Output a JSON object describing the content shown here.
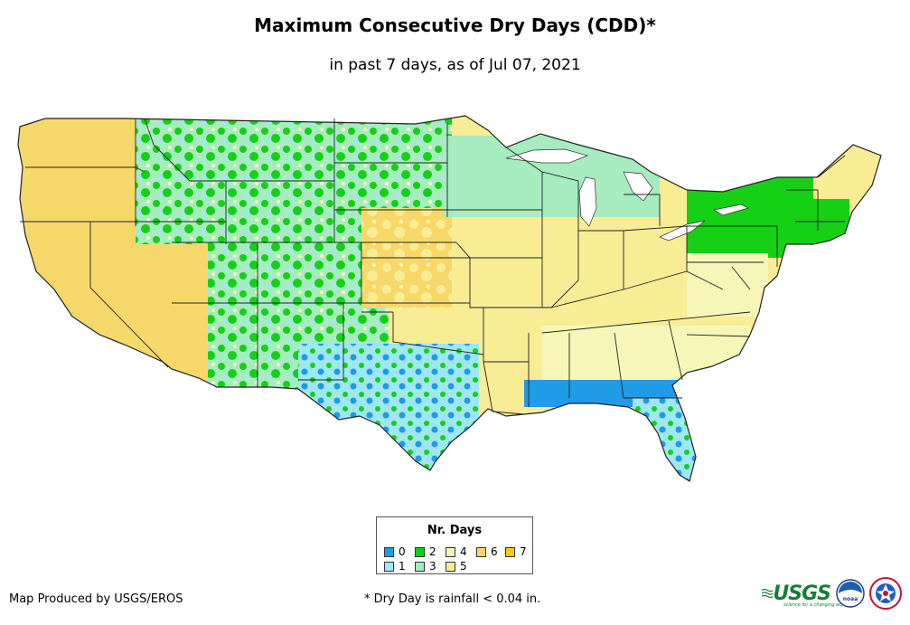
{
  "title": "Maximum Consecutive Dry Days (CDD)*",
  "subtitle": "in past 7 days, as of Jul 07, 2021",
  "legend": {
    "title": "Nr. Days",
    "items": [
      {
        "label": "0",
        "color": "#1f9be8"
      },
      {
        "label": "1",
        "color": "#9ee8f5"
      },
      {
        "label": "2",
        "color": "#15d015"
      },
      {
        "label": "3",
        "color": "#a6ecbf"
      },
      {
        "label": "4",
        "color": "#f6f6b8"
      },
      {
        "label": "5",
        "color": "#f8ec95"
      },
      {
        "label": "6",
        "color": "#f6d86a"
      },
      {
        "label": "7",
        "color": "#ffc800"
      }
    ]
  },
  "credit": "Map Produced by USGS/EROS",
  "footnote": "* Dry Day is rainfall < 0.04 in.",
  "logos": {
    "usgs": "USGS",
    "usgs_tagline": "science for a changing world",
    "noaa": "noaa"
  },
  "icons": {
    "usgs": "usgs-logo-icon",
    "noaa": "noaa-logo-icon",
    "nws": "nws-logo-icon"
  }
}
